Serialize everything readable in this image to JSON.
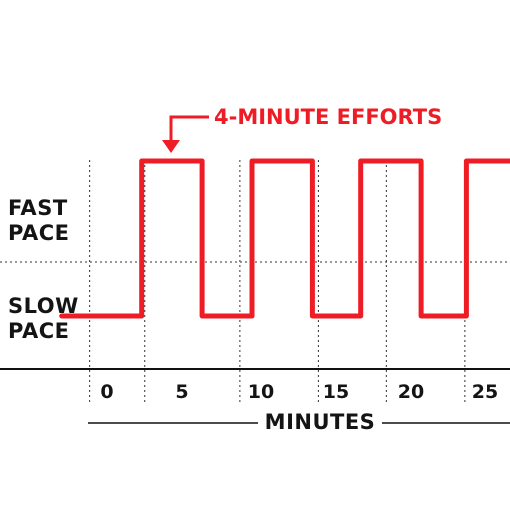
{
  "chart_data": {
    "type": "line",
    "title": "",
    "xlabel": "MINUTES",
    "ylabel": "",
    "x_ticks": [
      0,
      5,
      10,
      15,
      20,
      25
    ],
    "y_levels": [
      "SLOW PACE",
      "FAST PACE"
    ],
    "xlim": [
      -3,
      30
    ],
    "series": [
      {
        "color": "#ee1c25",
        "points": [
          [
            -3,
            0
          ],
          [
            2.3,
            0
          ],
          [
            2.3,
            1
          ],
          [
            6.3,
            1
          ],
          [
            6.3,
            0
          ],
          [
            9.6,
            0
          ],
          [
            9.6,
            1
          ],
          [
            13.6,
            1
          ],
          [
            13.6,
            0
          ],
          [
            16.8,
            0
          ],
          [
            16.8,
            1
          ],
          [
            20.8,
            1
          ],
          [
            20.8,
            0
          ],
          [
            23.8,
            0
          ],
          [
            23.8,
            1
          ],
          [
            27.8,
            1
          ],
          [
            27.8,
            0
          ],
          [
            30,
            0
          ]
        ]
      }
    ],
    "annotation": {
      "text": "4-MINUTE EFFORTS",
      "color": "#ee1c25"
    },
    "grid": true
  },
  "labels": {
    "fast_line1": "FAST",
    "fast_line2": "PACE",
    "slow_line1": "SLOW",
    "slow_line2": "PACE"
  }
}
